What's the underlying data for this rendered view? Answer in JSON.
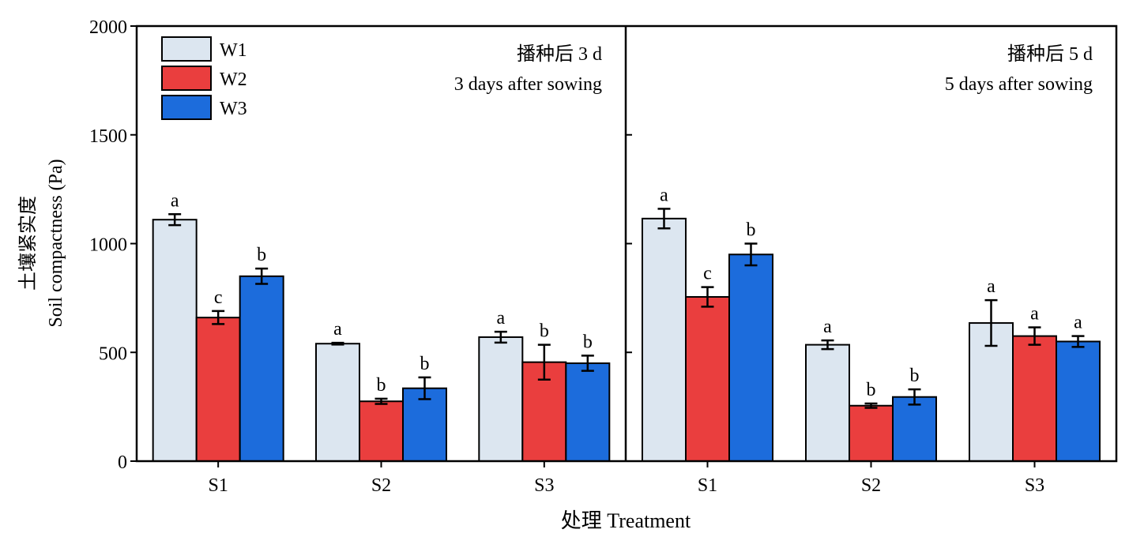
{
  "chart_data": {
    "type": "bar",
    "y_axis": {
      "label_cn": "土壤紧实度",
      "label_en": "Soil compactness (Pa)",
      "ylim": [
        0,
        2000
      ],
      "ticks": [
        "0",
        "500",
        "1000",
        "1500",
        "2000"
      ]
    },
    "x_axis": {
      "label": "处理 Treatment"
    },
    "series": [
      {
        "name": "W1",
        "color": "#dce6f0"
      },
      {
        "name": "W2",
        "color": "#ea3e3e"
      },
      {
        "name": "W3",
        "color": "#1c6cdc"
      }
    ],
    "legend_position": "top-left",
    "panels": [
      {
        "title_cn": "播种后 3 d",
        "title_en": "3 days after sowing",
        "categories": [
          "S1",
          "S2",
          "S3"
        ],
        "values": [
          [
            1110,
            660,
            850
          ],
          [
            540,
            275,
            335
          ],
          [
            570,
            455,
            450
          ]
        ],
        "errors": [
          [
            25,
            30,
            35
          ],
          [
            4,
            12,
            50
          ],
          [
            25,
            80,
            35
          ]
        ],
        "letters": [
          [
            "a",
            "c",
            "b"
          ],
          [
            "a",
            "b",
            "b"
          ],
          [
            "a",
            "b",
            "b"
          ]
        ]
      },
      {
        "title_cn": "播种后 5 d",
        "title_en": "5 days after sowing",
        "categories": [
          "S1",
          "S2",
          "S3"
        ],
        "values": [
          [
            1115,
            755,
            950
          ],
          [
            535,
            255,
            295
          ],
          [
            635,
            575,
            550
          ]
        ],
        "errors": [
          [
            45,
            45,
            50
          ],
          [
            20,
            10,
            35
          ],
          [
            105,
            40,
            25
          ]
        ],
        "letters": [
          [
            "a",
            "c",
            "b"
          ],
          [
            "a",
            "b",
            "b"
          ],
          [
            "a",
            "a",
            "a"
          ]
        ]
      }
    ]
  }
}
